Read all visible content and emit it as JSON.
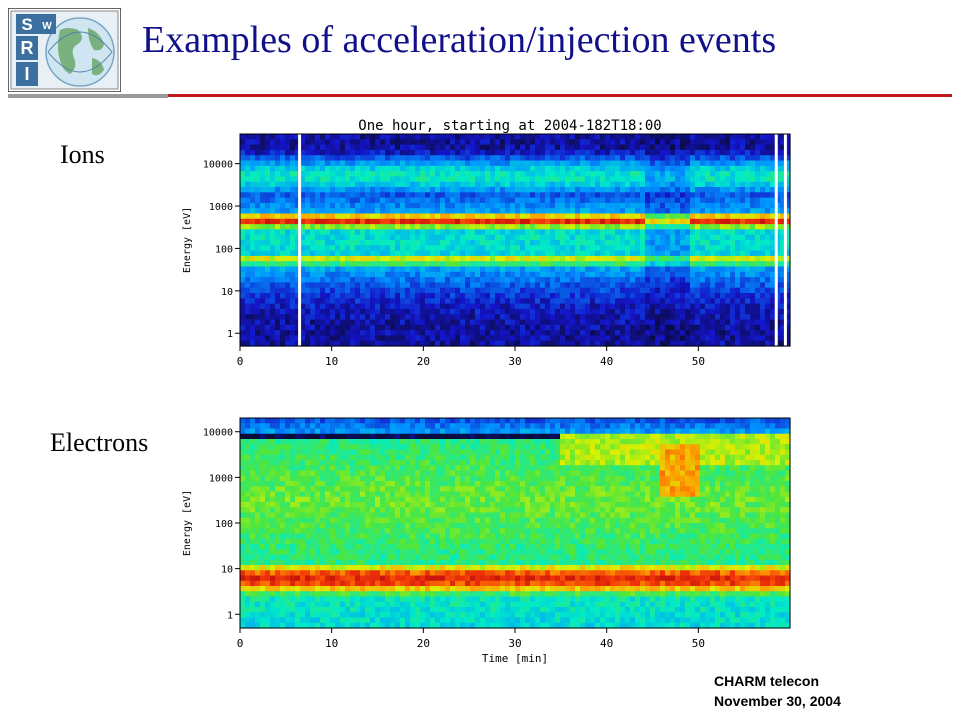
{
  "slide": {
    "title": "Examples of acceleration/injection events",
    "footer_line1": "CHARM telecon",
    "footer_line2": "November 30, 2004",
    "logo_text": "SwRI"
  },
  "panels": {
    "ions_label": "Ions",
    "electrons_label": "Electrons"
  },
  "colors": {
    "title": "#10108a",
    "rule_red": "#c01818",
    "rule_grey": "#9a9a9a"
  },
  "chart_data": [
    {
      "type": "heatmap",
      "title": "One hour, starting at 2004-182T18:00",
      "panel": "Ions",
      "xlabel": "",
      "ylabel": "Energy [eV]",
      "x_ticks": [
        0,
        10,
        20,
        30,
        40,
        50
      ],
      "y_ticks": [
        "1",
        "10",
        "100",
        "1000",
        "10000"
      ],
      "y_tick_values": [
        1,
        10,
        100,
        1000,
        10000
      ],
      "xlim": [
        0,
        60
      ],
      "ylim": [
        0.5,
        50000
      ],
      "y_scale": "log",
      "colormap": "rainbow",
      "bands": [
        {
          "center_eV": 450,
          "intensity": "high (red)"
        },
        {
          "center_eV": 55,
          "intensity": "medium (yellow-orange)"
        },
        {
          "center_eV": 5000,
          "intensity": "low (cyan)"
        }
      ],
      "data_gaps_min": [
        6.5,
        58.5,
        59.5
      ]
    },
    {
      "type": "heatmap",
      "panel": "Electrons",
      "xlabel": "Time [min]",
      "ylabel": "Energy [eV]",
      "x_ticks": [
        0,
        10,
        20,
        30,
        40,
        50
      ],
      "y_ticks": [
        "1",
        "10",
        "100",
        "1000",
        "10000"
      ],
      "y_tick_values": [
        1,
        10,
        100,
        1000,
        10000
      ],
      "xlim": [
        0,
        60
      ],
      "ylim": [
        0.5,
        20000
      ],
      "y_scale": "log",
      "colormap": "rainbow",
      "bands": [
        {
          "center_eV": 6,
          "intensity": "high (red)"
        },
        {
          "center_eV": 300,
          "intensity": "medium (green)"
        },
        {
          "center_eV": 12000,
          "intensity": "low (blue)"
        }
      ],
      "injection_event_min": [
        46,
        50
      ]
    }
  ]
}
